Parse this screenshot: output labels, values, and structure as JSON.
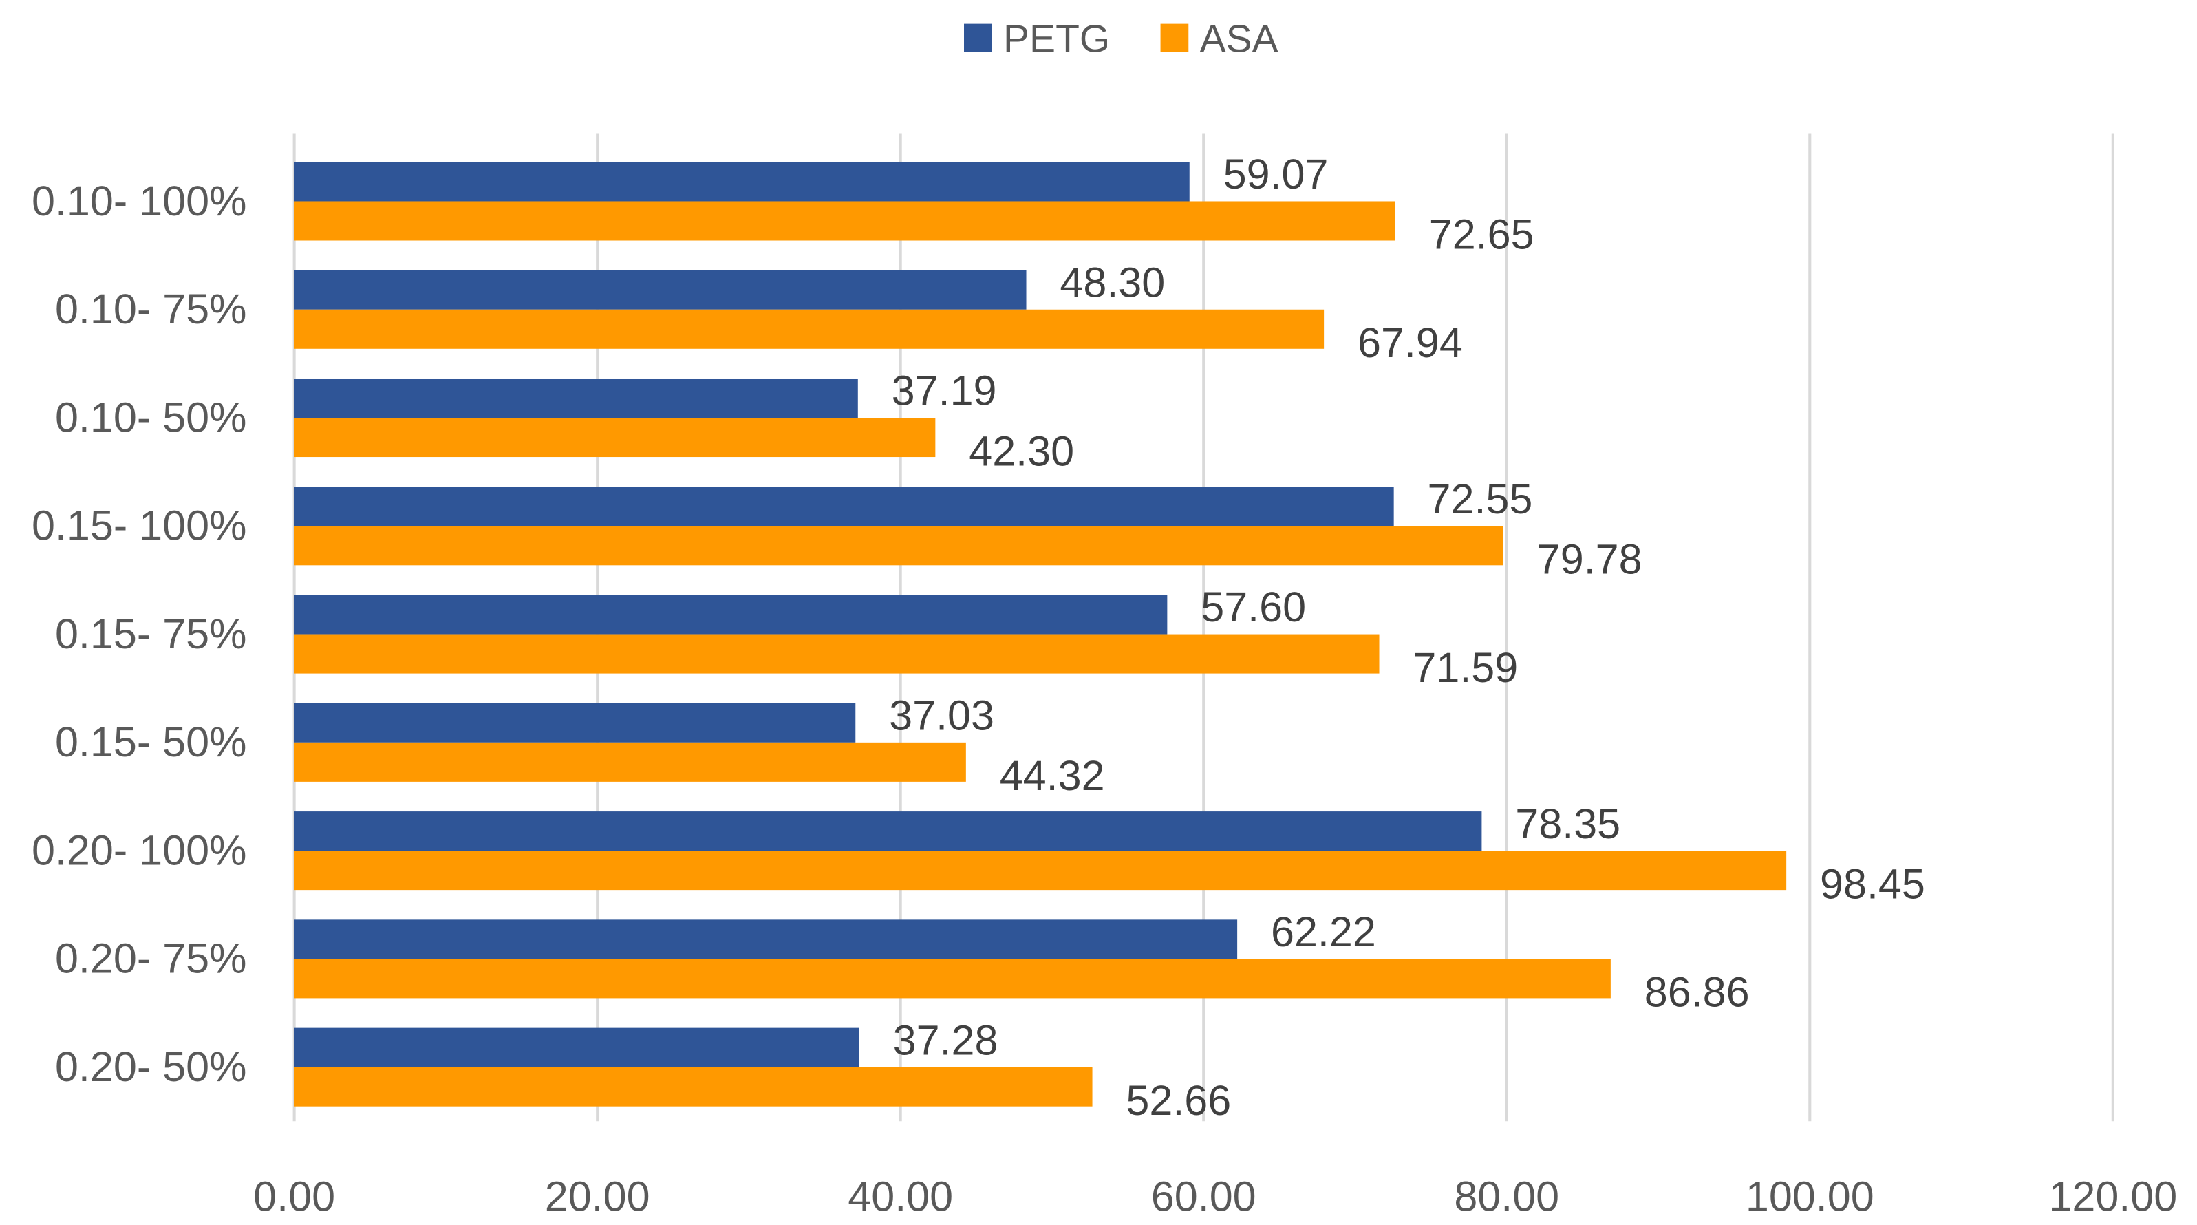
{
  "chart_data": {
    "type": "bar",
    "orientation": "horizontal",
    "title": "",
    "xlabel": "",
    "ylabel": "",
    "categories": [
      "0.10- 100%",
      "0.10- 75%",
      "0.10- 50%",
      "0.15- 100%",
      "0.15- 75%",
      "0.15- 50%",
      "0.20- 100%",
      "0.20- 75%",
      "0.20- 50%"
    ],
    "series": [
      {
        "name": "PETG",
        "color": "#2F5597",
        "values": [
          59.07,
          48.3,
          37.19,
          72.55,
          57.6,
          37.03,
          78.35,
          62.22,
          37.28
        ],
        "labels": [
          "59.07",
          "48.30",
          "37.19",
          "72.55",
          "57.60",
          "37.03",
          "78.35",
          "62.22",
          "37.28"
        ]
      },
      {
        "name": "ASA",
        "color": "#FF9900",
        "values": [
          72.65,
          67.94,
          42.3,
          79.78,
          71.59,
          44.32,
          98.45,
          86.86,
          52.66
        ],
        "labels": [
          "72.65",
          "67.94",
          "42.30",
          "79.78",
          "71.59",
          "44.32",
          "98.45",
          "86.86",
          "52.66"
        ]
      }
    ],
    "xlim": [
      0,
      120
    ],
    "xticks": [
      "0.00",
      "20.00",
      "40.00",
      "60.00",
      "80.00",
      "100.00",
      "120.00"
    ],
    "grid": true,
    "legend_position": "top-center"
  }
}
